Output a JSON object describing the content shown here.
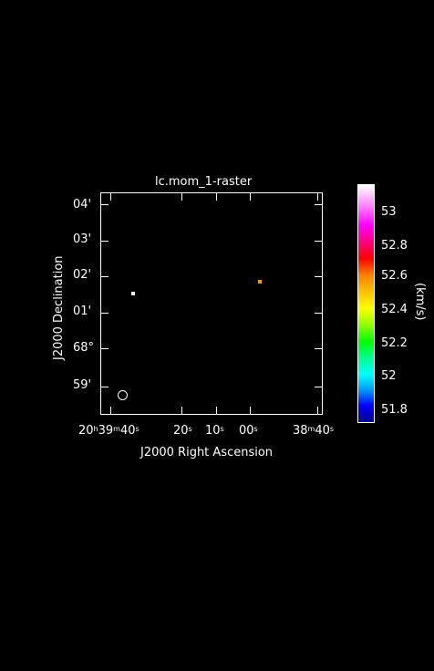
{
  "plot": {
    "title": "lc.mom_1-raster",
    "xlabel": "J2000 Right Ascension",
    "ylabel": "J2000 Declination",
    "x_ticks": [
      {
        "main": "20",
        "sup1": "h",
        "mid": "39",
        "sup2": "m",
        "tail": "40",
        "sup3": "s"
      },
      {
        "main": "20",
        "sup3": "s"
      },
      {
        "main": "10",
        "sup3": "s"
      },
      {
        "main": "00",
        "sup3": "s"
      },
      {
        "main": "38",
        "sup2": "m",
        "tail": "40",
        "sup3": "s"
      }
    ],
    "y_ticks": [
      "04'",
      "03'",
      "02'",
      "01'",
      "68°",
      "59'"
    ]
  },
  "colorbar": {
    "unit": "(km/s)",
    "ticks": [
      "53",
      "52.8",
      "52.6",
      "52.4",
      "52.2",
      "52",
      "51.8"
    ]
  },
  "colors": {
    "background": "#000000",
    "frame": "#ffffff",
    "pixel_white": "#ffffff",
    "pixel_orange": "#ff9900"
  }
}
